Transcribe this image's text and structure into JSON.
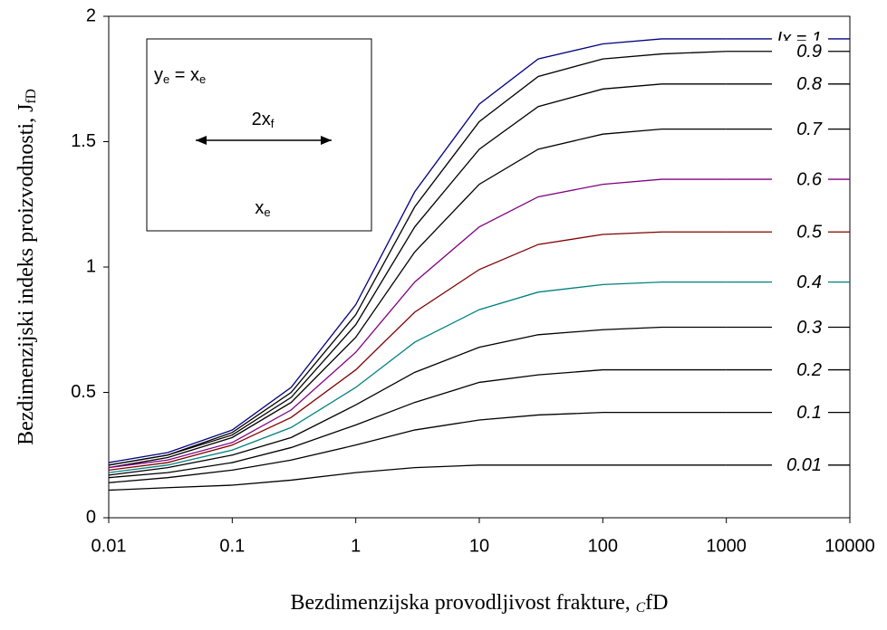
{
  "chart_data": {
    "type": "line",
    "xlabel": [
      "Bezdimenzijska provodljivost frakture, ",
      "C",
      "fD"
    ],
    "ylabel": [
      "Bezdimenzijski indeks proizvodnosti, J",
      "fD"
    ],
    "annotations": [
      [
        "y",
        "e",
        " = x",
        "e"
      ],
      [
        "2x",
        "f"
      ],
      [
        "x",
        "e"
      ]
    ],
    "xscale": "log",
    "xlim": [
      0.01,
      10000
    ],
    "xticks": [
      0.01,
      0.1,
      1,
      10,
      100,
      1000,
      10000
    ],
    "ylim": [
      0,
      2
    ],
    "yticks": [
      0,
      0.5,
      1,
      1.5,
      2
    ],
    "x": [
      0.01,
      0.03,
      0.1,
      0.3,
      1,
      3,
      10,
      30,
      100,
      300,
      1000
    ],
    "series": [
      {
        "name": "Ix = 1",
        "color": "#000080",
        "values": [
          0.22,
          0.26,
          0.35,
          0.52,
          0.85,
          1.3,
          1.65,
          1.83,
          1.89,
          1.91,
          1.91
        ]
      },
      {
        "name": "0.9",
        "color": "#000000",
        "values": [
          0.21,
          0.25,
          0.34,
          0.5,
          0.81,
          1.24,
          1.58,
          1.76,
          1.83,
          1.85,
          1.86
        ]
      },
      {
        "name": "0.8",
        "color": "#000000",
        "values": [
          0.21,
          0.25,
          0.33,
          0.48,
          0.77,
          1.16,
          1.47,
          1.64,
          1.71,
          1.73,
          1.73
        ]
      },
      {
        "name": "0.7",
        "color": "#000000",
        "values": [
          0.2,
          0.24,
          0.32,
          0.46,
          0.72,
          1.06,
          1.33,
          1.47,
          1.53,
          1.55,
          1.55
        ]
      },
      {
        "name": "0.6",
        "color": "#800080",
        "values": [
          0.2,
          0.23,
          0.3,
          0.43,
          0.66,
          0.94,
          1.16,
          1.28,
          1.33,
          1.35,
          1.35
        ]
      },
      {
        "name": "0.5",
        "color": "#800000",
        "values": [
          0.19,
          0.22,
          0.29,
          0.4,
          0.59,
          0.82,
          0.99,
          1.09,
          1.13,
          1.14,
          1.14
        ]
      },
      {
        "name": "0.4",
        "color": "#008080",
        "values": [
          0.18,
          0.21,
          0.27,
          0.36,
          0.52,
          0.7,
          0.83,
          0.9,
          0.93,
          0.94,
          0.94
        ]
      },
      {
        "name": "0.3",
        "color": "#000000",
        "values": [
          0.17,
          0.2,
          0.25,
          0.32,
          0.45,
          0.58,
          0.68,
          0.73,
          0.75,
          0.76,
          0.76
        ]
      },
      {
        "name": "0.2",
        "color": "#000000",
        "values": [
          0.16,
          0.18,
          0.22,
          0.28,
          0.37,
          0.46,
          0.54,
          0.57,
          0.59,
          0.59,
          0.59
        ]
      },
      {
        "name": "0.1",
        "color": "#000000",
        "values": [
          0.14,
          0.16,
          0.19,
          0.23,
          0.29,
          0.35,
          0.39,
          0.41,
          0.42,
          0.42,
          0.42
        ]
      },
      {
        "name": "0.01",
        "color": "#000000",
        "values": [
          0.11,
          0.12,
          0.13,
          0.15,
          0.18,
          0.2,
          0.21,
          0.21,
          0.21,
          0.21,
          0.21
        ]
      }
    ]
  }
}
